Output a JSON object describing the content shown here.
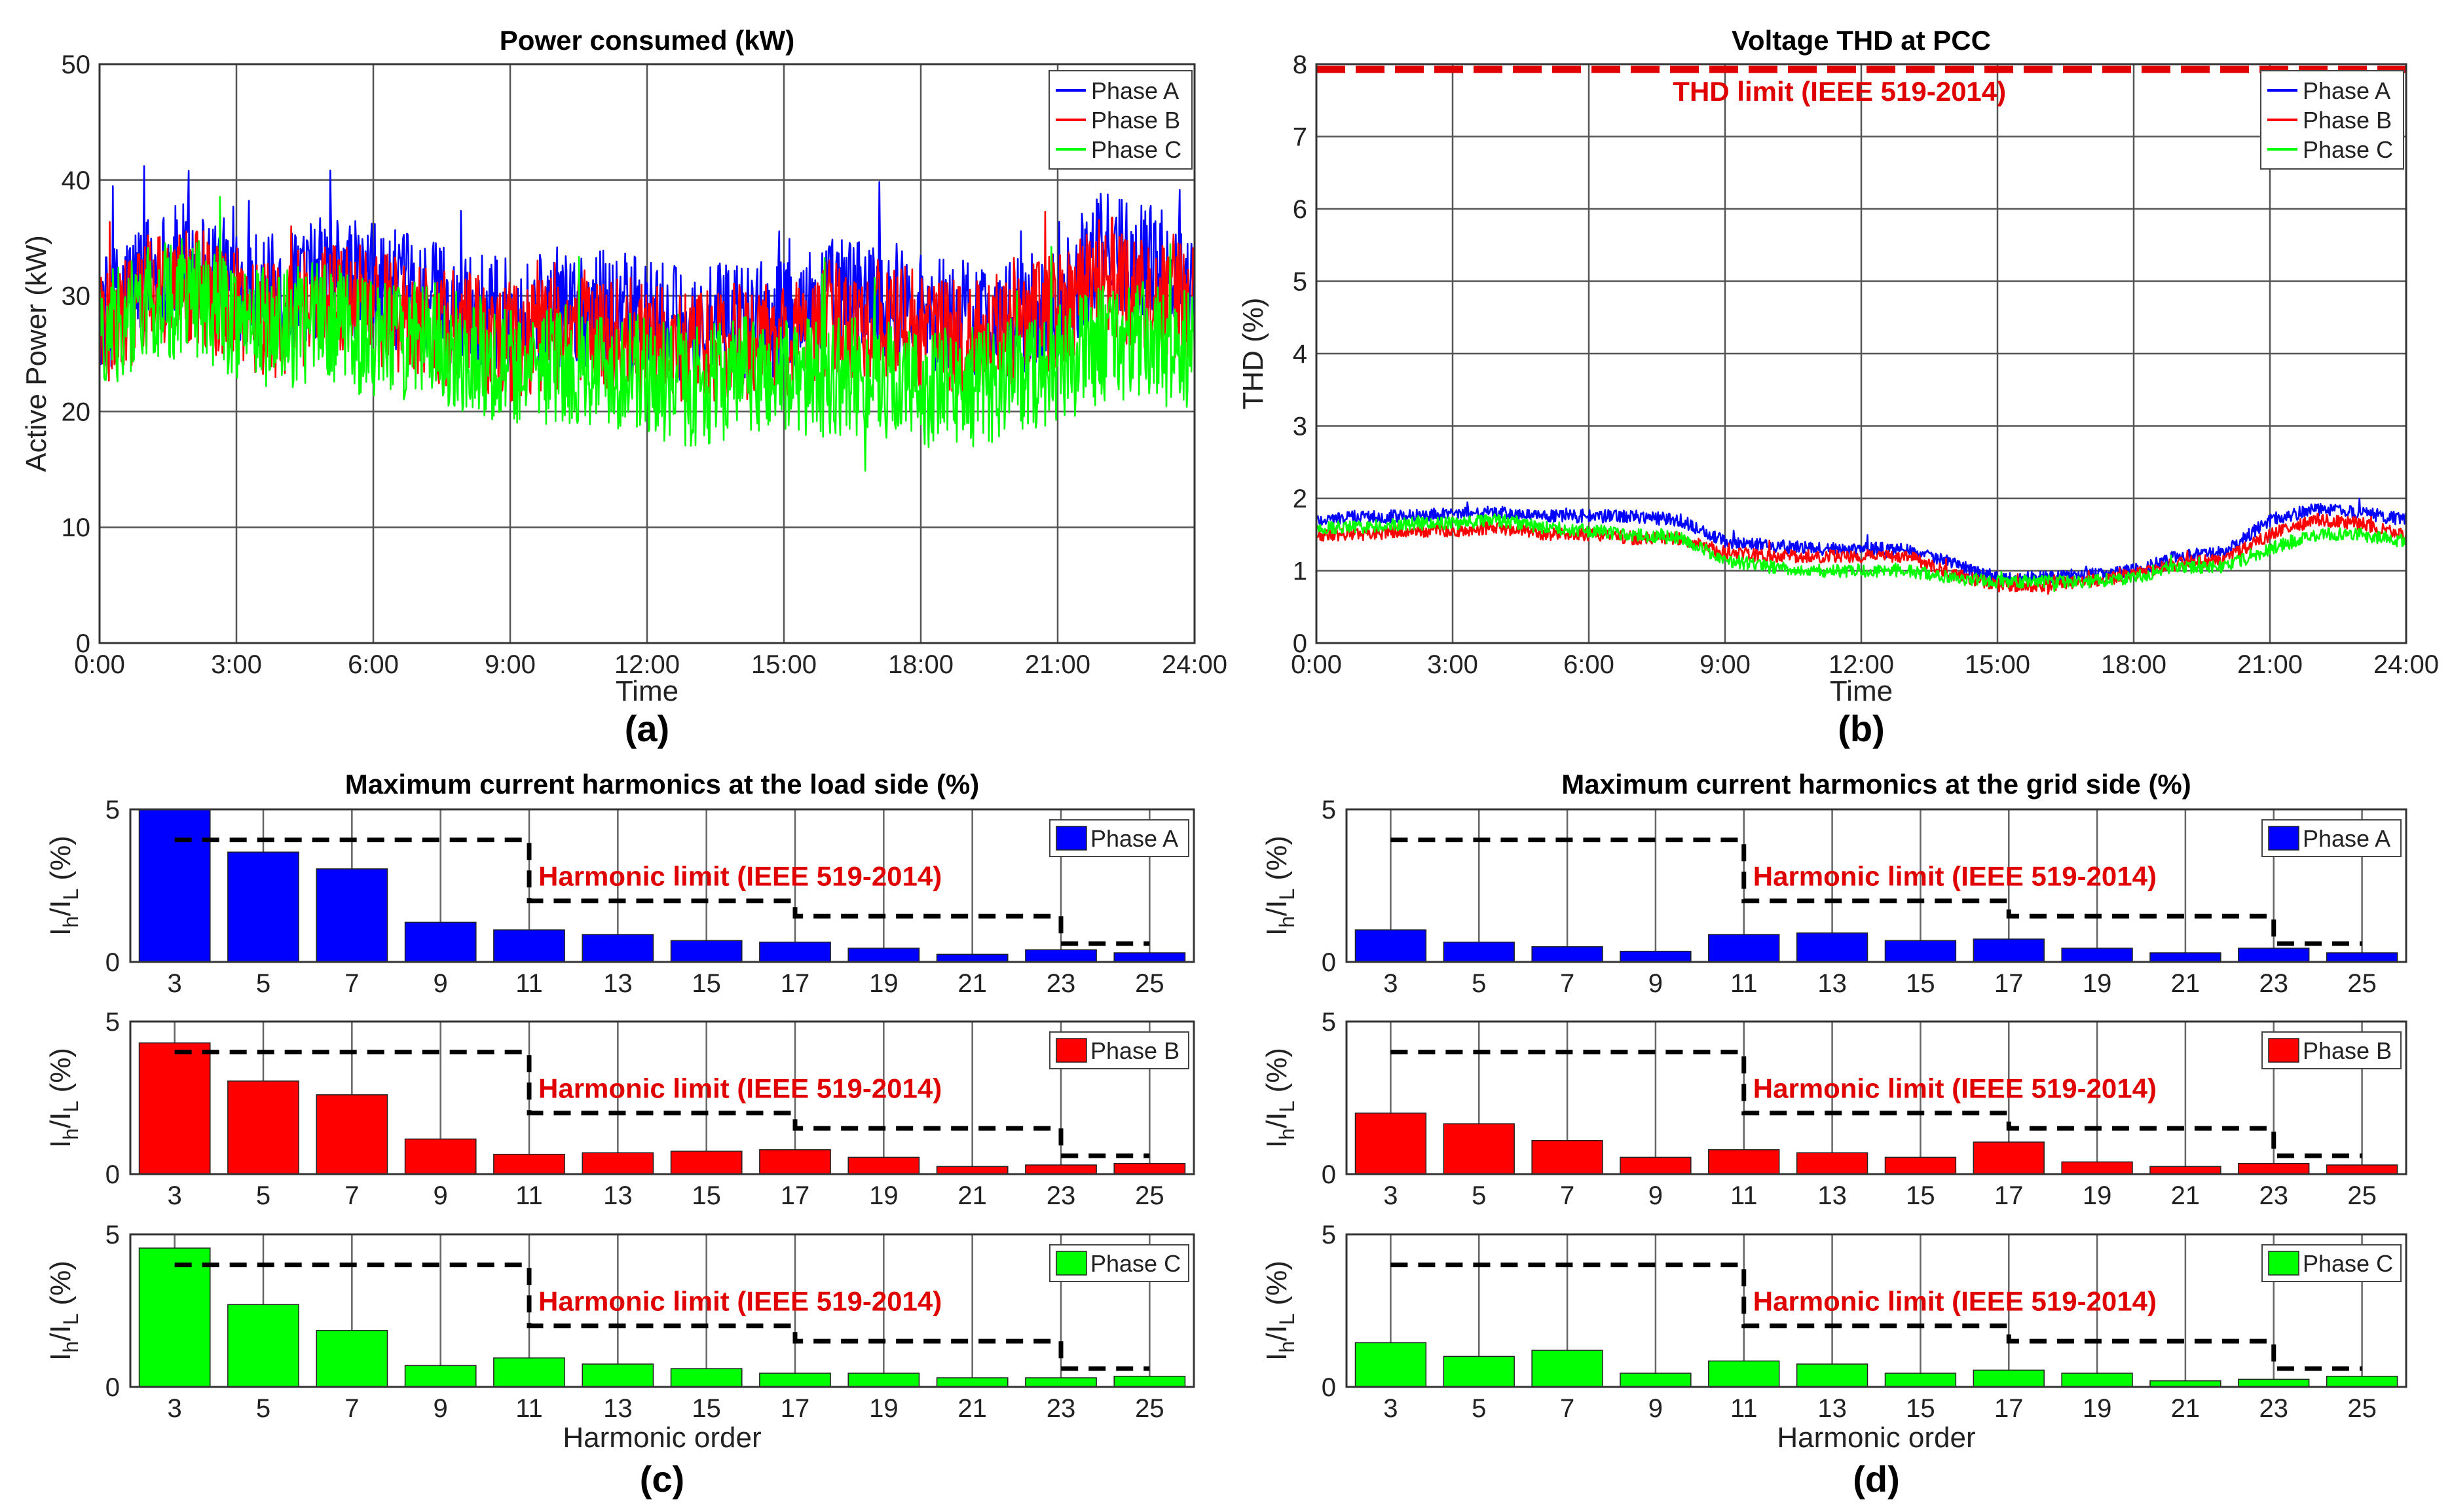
{
  "colors": {
    "phase_a": "#0000ff",
    "phase_b": "#ff0000",
    "phase_c": "#00ff00",
    "limit_line": "#000000",
    "limit_text": "#e00000"
  },
  "chart_data": [
    {
      "panel": "a",
      "type": "line",
      "title": "Power consumed (kW)",
      "panel_label": "(a)",
      "xlabel": "Time",
      "ylabel": "Active Power (kW)",
      "ylim": [
        0,
        50
      ],
      "yticks": [
        0,
        10,
        20,
        30,
        40,
        50
      ],
      "xticks": [
        "0:00",
        "3:00",
        "6:00",
        "9:00",
        "12:00",
        "15:00",
        "18:00",
        "21:00",
        "24:00"
      ],
      "grid": true,
      "legend_position": "top-right",
      "series": [
        {
          "name": "Phase A",
          "color": "#0000ff",
          "x_hours": [
            0,
            1,
            2,
            3,
            4,
            5,
            6,
            7,
            8,
            9,
            10,
            11,
            12,
            13,
            14,
            15,
            16,
            17,
            18,
            19,
            20,
            21,
            22,
            23,
            24
          ],
          "values": [
            28,
            32,
            33,
            31,
            30,
            32,
            31,
            30,
            29,
            28,
            29,
            29,
            28,
            27,
            28,
            28,
            30,
            30,
            29,
            28,
            28,
            29,
            34,
            33,
            31
          ]
        },
        {
          "name": "Phase B",
          "color": "#ff0000",
          "x_hours": [
            0,
            1,
            2,
            3,
            4,
            5,
            6,
            7,
            8,
            9,
            10,
            11,
            12,
            13,
            14,
            15,
            16,
            17,
            18,
            19,
            20,
            21,
            22,
            23,
            24
          ],
          "values": [
            27,
            30,
            31,
            29,
            28,
            30,
            29,
            28,
            27,
            26,
            27,
            27,
            26,
            25,
            26,
            26,
            28,
            28,
            27,
            26,
            27,
            29,
            32,
            30,
            29
          ]
        },
        {
          "name": "Phase C",
          "color": "#00ff00",
          "x_hours": [
            0,
            1,
            2,
            3,
            4,
            5,
            6,
            7,
            8,
            9,
            10,
            11,
            12,
            13,
            14,
            15,
            16,
            17,
            18,
            19,
            20,
            21,
            22,
            23,
            24
          ],
          "values": [
            27,
            29,
            30,
            28,
            27,
            28,
            26,
            26,
            25,
            24,
            24,
            24,
            23,
            22,
            23,
            23,
            23,
            23,
            22,
            22,
            23,
            24,
            26,
            26,
            25
          ]
        }
      ]
    },
    {
      "panel": "b",
      "type": "line",
      "title": "Voltage THD at PCC",
      "panel_label": "(b)",
      "xlabel": "Time",
      "ylabel": "THD (%)",
      "ylim": [
        0,
        8
      ],
      "yticks": [
        0,
        1,
        2,
        3,
        4,
        5,
        6,
        7,
        8
      ],
      "xticks": [
        "0:00",
        "3:00",
        "6:00",
        "9:00",
        "12:00",
        "15:00",
        "18:00",
        "21:00",
        "24:00"
      ],
      "grid": true,
      "legend_position": "top-right",
      "limit": {
        "value": 8,
        "label": "THD limit (IEEE 519-2014)"
      },
      "series": [
        {
          "name": "Phase A",
          "color": "#0000ff",
          "x_hours": [
            0,
            1,
            2,
            3,
            4,
            5,
            6,
            7,
            8,
            9,
            10,
            11,
            12,
            13,
            14,
            15,
            16,
            17,
            18,
            19,
            20,
            21,
            22,
            23,
            24
          ],
          "values": [
            1.7,
            1.75,
            1.75,
            1.8,
            1.8,
            1.75,
            1.75,
            1.75,
            1.7,
            1.4,
            1.35,
            1.3,
            1.3,
            1.3,
            1.1,
            0.9,
            0.9,
            0.95,
            1.0,
            1.2,
            1.25,
            1.7,
            1.85,
            1.8,
            1.7
          ]
        },
        {
          "name": "Phase B",
          "color": "#ff0000",
          "x_hours": [
            0,
            1,
            2,
            3,
            4,
            5,
            6,
            7,
            8,
            9,
            10,
            11,
            12,
            13,
            14,
            15,
            16,
            17,
            18,
            19,
            20,
            21,
            22,
            23,
            24
          ],
          "values": [
            1.5,
            1.5,
            1.55,
            1.55,
            1.6,
            1.5,
            1.5,
            1.45,
            1.45,
            1.25,
            1.2,
            1.2,
            1.2,
            1.2,
            0.95,
            0.8,
            0.8,
            0.85,
            0.95,
            1.1,
            1.15,
            1.5,
            1.7,
            1.65,
            1.5
          ]
        },
        {
          "name": "Phase C",
          "color": "#00ff00",
          "x_hours": [
            0,
            1,
            2,
            3,
            4,
            5,
            6,
            7,
            8,
            9,
            10,
            11,
            12,
            13,
            14,
            15,
            16,
            17,
            18,
            19,
            20,
            21,
            22,
            23,
            24
          ],
          "values": [
            1.6,
            1.6,
            1.65,
            1.65,
            1.7,
            1.6,
            1.55,
            1.5,
            1.45,
            1.15,
            1.05,
            1.0,
            1.0,
            1.0,
            0.9,
            0.85,
            0.85,
            0.85,
            0.9,
            1.05,
            1.05,
            1.3,
            1.5,
            1.5,
            1.4
          ]
        }
      ]
    },
    {
      "panel": "c",
      "type": "bar",
      "title": "Maximum current harmonics at the load side (%)",
      "panel_label": "(c)",
      "xlabel": "Harmonic order",
      "ylabel": "I_h/I_L (%)",
      "ylim": [
        0,
        5
      ],
      "yticks": [
        0,
        5
      ],
      "categories": [
        "3",
        "5",
        "7",
        "9",
        "11",
        "13",
        "15",
        "17",
        "19",
        "21",
        "23",
        "25"
      ],
      "limit_label": "Harmonic limit (IEEE 519-2014)",
      "limit_steps": [
        {
          "from": 3,
          "to": 11,
          "value": 4
        },
        {
          "from": 11,
          "to": 17,
          "value": 2
        },
        {
          "from": 17,
          "to": 23,
          "value": 1.5
        },
        {
          "from": 23,
          "to": 25,
          "value": 0.6
        }
      ],
      "series": [
        {
          "name": "Phase A",
          "color": "#0000ff",
          "values": [
            5.0,
            3.6,
            3.05,
            1.3,
            1.05,
            0.9,
            0.7,
            0.65,
            0.45,
            0.25,
            0.4,
            0.3
          ]
        },
        {
          "name": "Phase B",
          "color": "#ff0000",
          "values": [
            4.3,
            3.05,
            2.6,
            1.15,
            0.65,
            0.7,
            0.75,
            0.8,
            0.55,
            0.25,
            0.3,
            0.35
          ]
        },
        {
          "name": "Phase C",
          "color": "#00ff00",
          "values": [
            4.55,
            2.7,
            1.85,
            0.7,
            0.95,
            0.75,
            0.6,
            0.45,
            0.45,
            0.3,
            0.3,
            0.35
          ]
        }
      ]
    },
    {
      "panel": "d",
      "type": "bar",
      "title": "Maximum current harmonics at the grid side (%)",
      "panel_label": "(d)",
      "xlabel": "Harmonic order",
      "ylabel": "I_h/I_L (%)",
      "ylim": [
        0,
        5
      ],
      "yticks": [
        0,
        5
      ],
      "categories": [
        "3",
        "5",
        "7",
        "9",
        "11",
        "13",
        "15",
        "17",
        "19",
        "21",
        "23",
        "25"
      ],
      "limit_label": "Harmonic limit (IEEE 519-2014)",
      "limit_steps": [
        {
          "from": 3,
          "to": 11,
          "value": 4
        },
        {
          "from": 11,
          "to": 17,
          "value": 2
        },
        {
          "from": 17,
          "to": 23,
          "value": 1.5
        },
        {
          "from": 23,
          "to": 25,
          "value": 0.6
        }
      ],
      "series": [
        {
          "name": "Phase A",
          "color": "#0000ff",
          "values": [
            1.05,
            0.65,
            0.5,
            0.35,
            0.9,
            0.95,
            0.7,
            0.75,
            0.45,
            0.3,
            0.45,
            0.3
          ]
        },
        {
          "name": "Phase B",
          "color": "#ff0000",
          "values": [
            2.0,
            1.65,
            1.1,
            0.55,
            0.8,
            0.7,
            0.55,
            1.05,
            0.4,
            0.25,
            0.35,
            0.3
          ]
        },
        {
          "name": "Phase C",
          "color": "#00ff00",
          "values": [
            1.45,
            1.0,
            1.2,
            0.45,
            0.85,
            0.75,
            0.45,
            0.55,
            0.45,
            0.2,
            0.25,
            0.35
          ]
        }
      ]
    }
  ]
}
